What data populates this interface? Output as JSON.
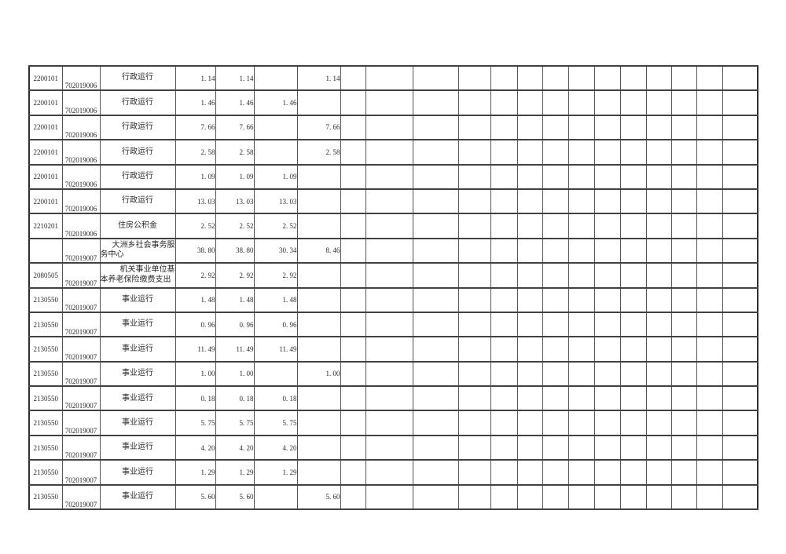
{
  "colors": {
    "page_background": "#ffffff",
    "grid_line": "#414141",
    "text": "#2a2a2a"
  },
  "table": {
    "visible_populated_columns": [
      "budget_code",
      "unit_code",
      "item_name",
      "value_1",
      "value_2",
      "value_3",
      "value_4"
    ],
    "empty_trailing_column_count": 14,
    "rows": [
      {
        "budget_code": "2200101",
        "unit_code": "702019006",
        "item_name": "行政运行",
        "name_lines": [
          "行政运行"
        ],
        "values": [
          "1. 14",
          "1. 14",
          "",
          "1. 14"
        ]
      },
      {
        "budget_code": "2200101",
        "unit_code": "702019006",
        "item_name": "行政运行",
        "name_lines": [
          "行政运行"
        ],
        "values": [
          "1. 46",
          "1. 46",
          "1. 46",
          ""
        ]
      },
      {
        "budget_code": "2200101",
        "unit_code": "702019006",
        "item_name": "行政运行",
        "name_lines": [
          "行政运行"
        ],
        "values": [
          "7. 66",
          "7. 66",
          "",
          "7. 66"
        ]
      },
      {
        "budget_code": "2200101",
        "unit_code": "702019006",
        "item_name": "行政运行",
        "name_lines": [
          "行政运行"
        ],
        "values": [
          "2. 58",
          "2. 58",
          "",
          "2. 58"
        ]
      },
      {
        "budget_code": "2200101",
        "unit_code": "702019006",
        "item_name": "行政运行",
        "name_lines": [
          "行政运行"
        ],
        "values": [
          "1. 09",
          "1. 09",
          "1. 09",
          ""
        ]
      },
      {
        "budget_code": "2200101",
        "unit_code": "702019006",
        "item_name": "行政运行",
        "name_lines": [
          "行政运行"
        ],
        "values": [
          "13. 03",
          "13. 03",
          "13. 03",
          ""
        ]
      },
      {
        "budget_code": "2210201",
        "unit_code": "702019006",
        "item_name": "住房公积金",
        "name_lines": [
          "住房公积金"
        ],
        "values": [
          "2. 52",
          "2. 52",
          "2. 52",
          ""
        ]
      },
      {
        "budget_code": "",
        "unit_code": "702019007",
        "item_name": "大洲乡社会事务服务中心",
        "name_lines": [
          "大洲乡社会事务服",
          "务中心"
        ],
        "values": [
          "38. 80",
          "38. 80",
          "30. 34",
          "8. 46"
        ]
      },
      {
        "budget_code": "2080505",
        "unit_code": "702019007",
        "item_name": "机关事业单位基本养老保险缴费支出",
        "name_lines": [
          "机关事业单位基",
          "本养老保险缴费支出"
        ],
        "values": [
          "2. 92",
          "2. 92",
          "2. 92",
          ""
        ]
      },
      {
        "budget_code": "2130550",
        "unit_code": "702019007",
        "item_name": "事业运行",
        "name_lines": [
          "事业运行"
        ],
        "values": [
          "1. 48",
          "1. 48",
          "1. 48",
          ""
        ]
      },
      {
        "budget_code": "2130550",
        "unit_code": "702019007",
        "item_name": "事业运行",
        "name_lines": [
          "事业运行"
        ],
        "values": [
          "0. 96",
          "0. 96",
          "0. 96",
          ""
        ]
      },
      {
        "budget_code": "2130550",
        "unit_code": "702019007",
        "item_name": "事业运行",
        "name_lines": [
          "事业运行"
        ],
        "values": [
          "11. 49",
          "11. 49",
          "11. 49",
          ""
        ]
      },
      {
        "budget_code": "2130550",
        "unit_code": "702019007",
        "item_name": "事业运行",
        "name_lines": [
          "事业运行"
        ],
        "values": [
          "1. 00",
          "1. 00",
          "",
          "1. 00"
        ]
      },
      {
        "budget_code": "2130550",
        "unit_code": "702019007",
        "item_name": "事业运行",
        "name_lines": [
          "事业运行"
        ],
        "values": [
          "0. 18",
          "0. 18",
          "0. 18",
          ""
        ]
      },
      {
        "budget_code": "2130550",
        "unit_code": "702019007",
        "item_name": "事业运行",
        "name_lines": [
          "事业运行"
        ],
        "values": [
          "5. 75",
          "5. 75",
          "5. 75",
          ""
        ]
      },
      {
        "budget_code": "2130550",
        "unit_code": "702019007",
        "item_name": "事业运行",
        "name_lines": [
          "事业运行"
        ],
        "values": [
          "4. 20",
          "4. 20",
          "4. 20",
          ""
        ]
      },
      {
        "budget_code": "2130550",
        "unit_code": "702019007",
        "item_name": "事业运行",
        "name_lines": [
          "事业运行"
        ],
        "values": [
          "1. 29",
          "1. 29",
          "1. 29",
          ""
        ]
      },
      {
        "budget_code": "2130550",
        "unit_code": "702019007",
        "item_name": "事业运行",
        "name_lines": [
          "事业运行"
        ],
        "values": [
          "5. 60",
          "5. 60",
          "",
          "5. 60"
        ]
      }
    ]
  }
}
